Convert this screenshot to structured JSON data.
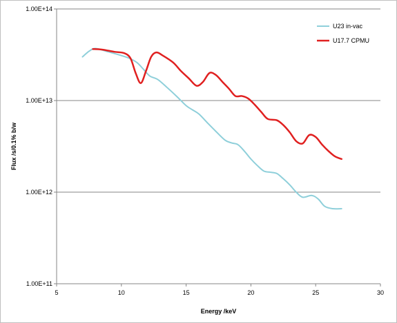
{
  "chart_data": {
    "type": "line",
    "title": "",
    "xlabel": "Energy /keV",
    "ylabel": "Flux /s/0.1% b/w",
    "xlim": [
      5,
      30
    ],
    "ylim": [
      100000000000.0,
      100000000000000.0
    ],
    "yscale": "log",
    "grid": {
      "x": false,
      "y": true
    },
    "legend_position": "top-right",
    "x_ticks": [
      5,
      10,
      15,
      20,
      25,
      30
    ],
    "x_tick_labels": [
      "5",
      "10",
      "15",
      "20",
      "25",
      "30"
    ],
    "y_ticks": [
      100000000000.0,
      1000000000000.0,
      10000000000000.0,
      100000000000000.0
    ],
    "y_tick_labels": [
      "1.00E+11",
      "1.00E+12",
      "1.00E+13",
      "1.00E+14"
    ],
    "series": [
      {
        "name": "U23 in-vac",
        "color": "#8ecfda",
        "points": [
          [
            7.0,
            30000000000000.0
          ],
          [
            7.5,
            34500000000000.0
          ],
          [
            8.0,
            37000000000000.0
          ],
          [
            9.0,
            34000000000000.0
          ],
          [
            10.0,
            31000000000000.0
          ],
          [
            10.6,
            29000000000000.0
          ],
          [
            11.2,
            26000000000000.0
          ],
          [
            11.7,
            22000000000000.0
          ],
          [
            12.2,
            18500000000000.0
          ],
          [
            12.8,
            17000000000000.0
          ],
          [
            13.5,
            14000000000000.0
          ],
          [
            14.3,
            11000000000000.0
          ],
          [
            15.0,
            8800000000000.0
          ],
          [
            15.5,
            7900000000000.0
          ],
          [
            16.0,
            7100000000000.0
          ],
          [
            16.7,
            5600000000000.0
          ],
          [
            17.3,
            4600000000000.0
          ],
          [
            18.0,
            3700000000000.0
          ],
          [
            18.5,
            3450000000000.0
          ],
          [
            19.0,
            3300000000000.0
          ],
          [
            19.5,
            2800000000000.0
          ],
          [
            20.0,
            2300000000000.0
          ],
          [
            20.5,
            1950000000000.0
          ],
          [
            21.0,
            1700000000000.0
          ],
          [
            21.5,
            1650000000000.0
          ],
          [
            22.0,
            1600000000000.0
          ],
          [
            22.5,
            1400000000000.0
          ],
          [
            23.0,
            1200000000000.0
          ],
          [
            23.5,
            1000000000000.0
          ],
          [
            24.0,
            880000000000.0
          ],
          [
            24.7,
            920000000000.0
          ],
          [
            25.2,
            840000000000.0
          ],
          [
            25.7,
            700000000000.0
          ],
          [
            26.3,
            660000000000.0
          ],
          [
            27.0,
            660000000000.0
          ]
        ]
      },
      {
        "name": "U17.7 CPMU",
        "color": "#e02020",
        "points": [
          [
            7.8,
            36500000000000.0
          ],
          [
            8.5,
            36000000000000.0
          ],
          [
            9.5,
            34000000000000.0
          ],
          [
            10.2,
            33000000000000.0
          ],
          [
            10.7,
            29000000000000.0
          ],
          [
            11.1,
            20000000000000.0
          ],
          [
            11.5,
            15500000000000.0
          ],
          [
            11.9,
            21000000000000.0
          ],
          [
            12.3,
            30000000000000.0
          ],
          [
            12.7,
            33500000000000.0
          ],
          [
            13.2,
            31000000000000.0
          ],
          [
            14.0,
            26000000000000.0
          ],
          [
            14.6,
            21000000000000.0
          ],
          [
            15.2,
            17500000000000.0
          ],
          [
            15.8,
            14500000000000.0
          ],
          [
            16.3,
            16000000000000.0
          ],
          [
            16.8,
            20000000000000.0
          ],
          [
            17.3,
            19000000000000.0
          ],
          [
            17.8,
            16000000000000.0
          ],
          [
            18.3,
            13500000000000.0
          ],
          [
            18.8,
            11200000000000.0
          ],
          [
            19.3,
            11200000000000.0
          ],
          [
            19.8,
            10500000000000.0
          ],
          [
            20.3,
            9000000000000.0
          ],
          [
            20.8,
            7500000000000.0
          ],
          [
            21.3,
            6300000000000.0
          ],
          [
            22.0,
            6100000000000.0
          ],
          [
            22.5,
            5400000000000.0
          ],
          [
            23.0,
            4500000000000.0
          ],
          [
            23.5,
            3600000000000.0
          ],
          [
            24.0,
            3400000000000.0
          ],
          [
            24.5,
            4200000000000.0
          ],
          [
            25.0,
            4000000000000.0
          ],
          [
            25.5,
            3300000000000.0
          ],
          [
            26.0,
            2800000000000.0
          ],
          [
            26.5,
            2450000000000.0
          ],
          [
            27.0,
            2300000000000.0
          ]
        ]
      }
    ]
  }
}
